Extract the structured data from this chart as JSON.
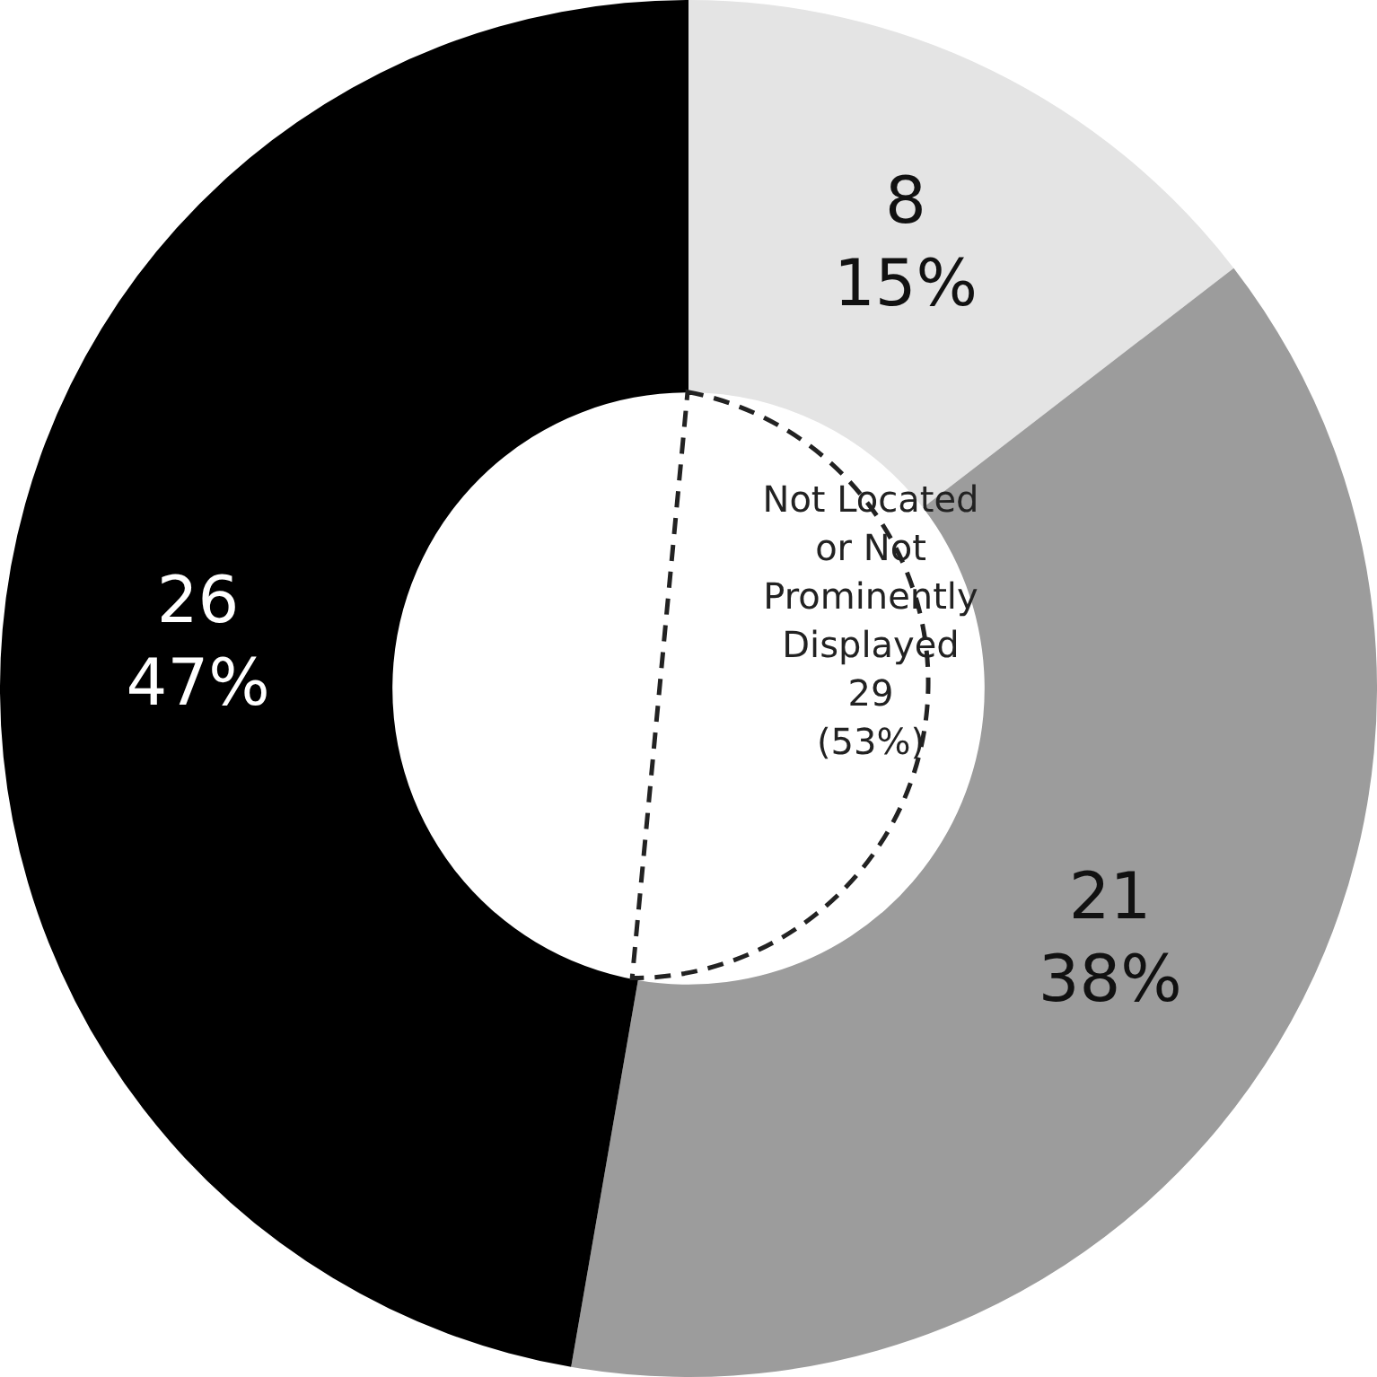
{
  "chart_data": {
    "type": "donut",
    "categories": [
      null,
      null,
      null
    ],
    "values": [
      8,
      21,
      26
    ],
    "colors": [
      "#e4e4e4",
      "#9c9c9c",
      "#000000"
    ],
    "value_labels": [
      "8\n15%",
      "21\n38%",
      "26\n47%"
    ],
    "annotations": [
      "Not Located\nor Not\nProminently\nDisplayed\n29\n(53%)"
    ],
    "legend": false
  }
}
